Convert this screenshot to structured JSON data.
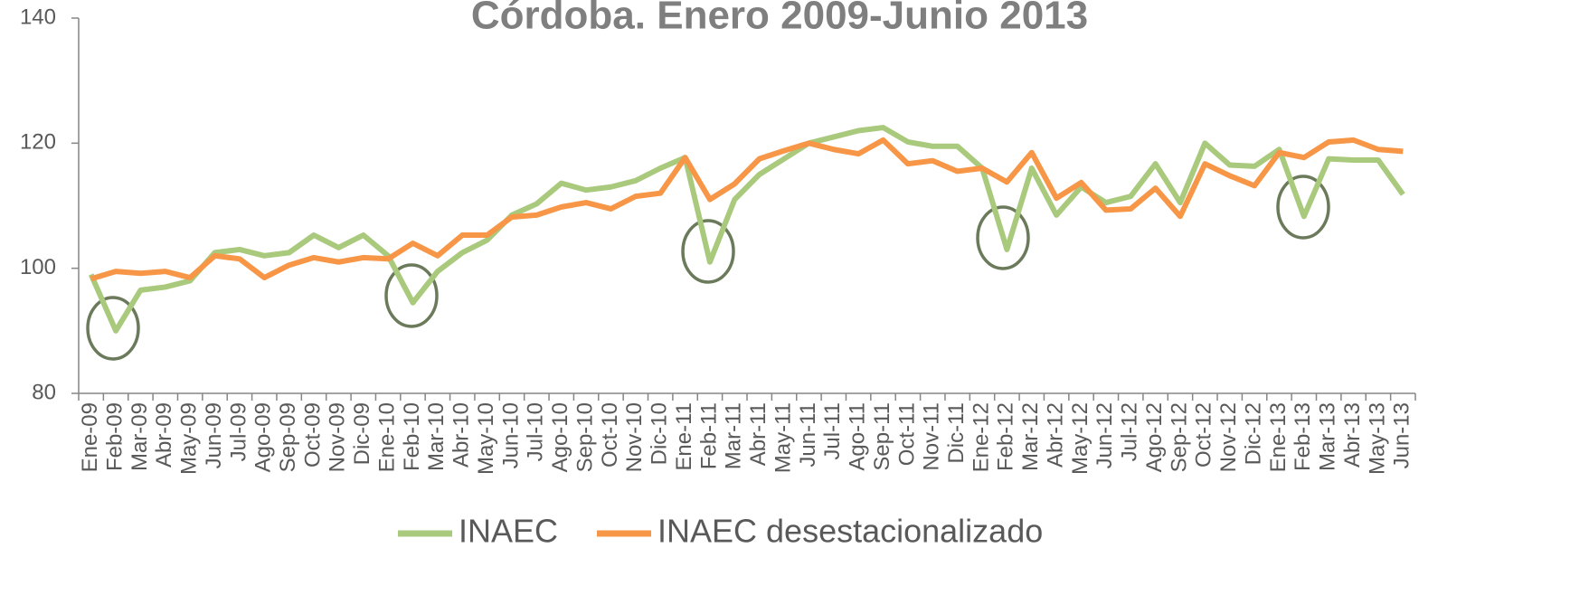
{
  "chart_data": {
    "type": "line",
    "title": "Córdoba. Enero 2009-Junio 2013",
    "categories": [
      "Ene-09",
      "Feb-09",
      "Mar-09",
      "Abr-09",
      "May-09",
      "Jun-09",
      "Jul-09",
      "Ago-09",
      "Sep-09",
      "Oct-09",
      "Nov-09",
      "Dic-09",
      "Ene-10",
      "Feb-10",
      "Mar-10",
      "Abr-10",
      "May-10",
      "Jun-10",
      "Jul-10",
      "Ago-10",
      "Sep-10",
      "Oct-10",
      "Nov-10",
      "Dic-10",
      "Ene-11",
      "Feb-11",
      "Mar-11",
      "Abr-11",
      "May-11",
      "Jun-11",
      "Jul-11",
      "Ago-11",
      "Sep-11",
      "Oct-11",
      "Nov-11",
      "Dic-11",
      "Ene-12",
      "Feb-12",
      "Mar-12",
      "Abr-12",
      "May-12",
      "Jun-12",
      "Jul-12",
      "Ago-12",
      "Sep-12",
      "Oct-12",
      "Nov-12",
      "Dic-12",
      "Ene-13",
      "Feb-13",
      "Mar-13",
      "Abr-13",
      "May-13",
      "Jun-13"
    ],
    "series": [
      {
        "name": "INAEC",
        "color": "#a9c97c",
        "values": [
          99,
          90,
          96.5,
          97,
          98,
          102.5,
          103,
          102,
          102.5,
          105.3,
          103.3,
          105.3,
          102,
          94.5,
          99.5,
          102.5,
          104.5,
          108.5,
          110.3,
          113.6,
          112.5,
          113,
          114,
          116,
          117.7,
          101,
          111,
          115,
          117.5,
          120,
          121,
          122,
          122.5,
          120.2,
          119.5,
          119.5,
          116,
          103,
          116,
          108.5,
          113,
          110.5,
          111.5,
          116.7,
          110.5,
          120,
          116.5,
          116.3,
          119,
          108.3,
          117.5,
          117.3,
          117.3,
          111.8
        ]
      },
      {
        "name": "INAEC desestacionalizado",
        "color": "#f79646",
        "values": [
          98.3,
          99.5,
          99.2,
          99.5,
          98.5,
          102,
          101.5,
          98.5,
          100.5,
          101.7,
          101,
          101.7,
          101.5,
          104,
          102,
          105.3,
          105.3,
          108.2,
          108.5,
          109.8,
          110.5,
          109.5,
          111.5,
          112,
          117.7,
          111,
          113.5,
          117.5,
          118.8,
          120,
          119,
          118.3,
          120.5,
          116.7,
          117.2,
          115.5,
          116,
          113.8,
          118.5,
          111.2,
          113.7,
          109.3,
          109.5,
          112.8,
          108.3,
          116.7,
          114.8,
          113.2,
          118.5,
          117.7,
          120.2,
          120.5,
          119,
          118.7
        ]
      }
    ],
    "ylim": [
      80,
      140
    ],
    "yticks": [
      80,
      100,
      120,
      140
    ]
  }
}
